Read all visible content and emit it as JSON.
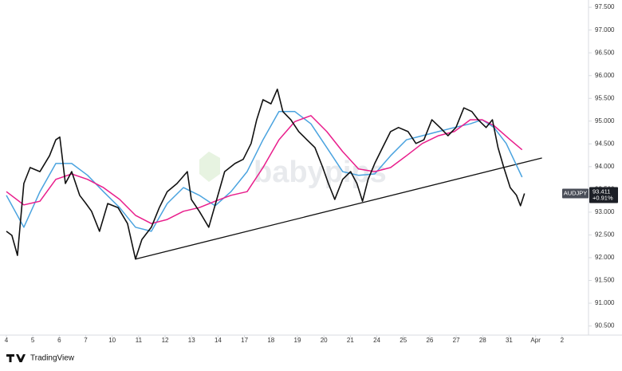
{
  "chart_data": {
    "type": "line",
    "symbol": "AUDJPY",
    "last_price": 93.411,
    "change_label": "+0.91%",
    "watermark": "babypips",
    "brand": "TradingView",
    "xlim": [
      -0.24,
      22
    ],
    "ylim": [
      90.3,
      97.66
    ],
    "xticks": [
      {
        "value": 0,
        "label": "4"
      },
      {
        "value": 1,
        "label": "5"
      },
      {
        "value": 2,
        "label": "6"
      },
      {
        "value": 3,
        "label": "7"
      },
      {
        "value": 4,
        "label": "10"
      },
      {
        "value": 5,
        "label": "11"
      },
      {
        "value": 6,
        "label": "12"
      },
      {
        "value": 7,
        "label": "13"
      },
      {
        "value": 8,
        "label": "14"
      },
      {
        "value": 9,
        "label": "17"
      },
      {
        "value": 10,
        "label": "18"
      },
      {
        "value": 11,
        "label": "19"
      },
      {
        "value": 12,
        "label": "20"
      },
      {
        "value": 13,
        "label": "21"
      },
      {
        "value": 14,
        "label": "24"
      },
      {
        "value": 15,
        "label": "25"
      },
      {
        "value": 16,
        "label": "26"
      },
      {
        "value": 17,
        "label": "27"
      },
      {
        "value": 18,
        "label": "28"
      },
      {
        "value": 19,
        "label": "31"
      },
      {
        "value": 20,
        "label": "Apr"
      },
      {
        "value": 21,
        "label": "2"
      }
    ],
    "yticks": [
      {
        "value": 90.5,
        "label": "90.500"
      },
      {
        "value": 91,
        "label": "91.000"
      },
      {
        "value": 91.5,
        "label": "91.500"
      },
      {
        "value": 92,
        "label": "92.000"
      },
      {
        "value": 92.5,
        "label": "92.500"
      },
      {
        "value": 93,
        "label": "93.000"
      },
      {
        "value": 93.5,
        "label": "93.500"
      },
      {
        "value": 94,
        "label": "94.000"
      },
      {
        "value": 94.5,
        "label": "94.500"
      },
      {
        "value": 95,
        "label": "95.000"
      },
      {
        "value": 95.5,
        "label": "95.500"
      },
      {
        "value": 96,
        "label": "96.000"
      },
      {
        "value": 96.5,
        "label": "96.500"
      },
      {
        "value": 97,
        "label": "97.000"
      },
      {
        "value": 97.5,
        "label": "97.500"
      }
    ],
    "series": [
      {
        "color": "#4aa3df",
        "width": 1.5,
        "x": [
          0,
          0.66,
          1.27,
          1.87,
          2.47,
          3.07,
          3.67,
          4.28,
          4.88,
          5.48,
          6.08,
          6.69,
          7.29,
          7.89,
          8.49,
          9.1,
          9.7,
          10.3,
          10.9,
          11.51,
          12.11,
          12.71,
          13.31,
          13.92,
          14.52,
          15.12,
          15.72,
          16.33,
          16.93,
          17.53,
          17.98,
          18.43,
          18.89,
          19.49
        ],
        "values": [
          93.37,
          92.67,
          93.45,
          94.07,
          94.07,
          93.81,
          93.45,
          93.1,
          92.67,
          92.58,
          93.19,
          93.54,
          93.37,
          93.14,
          93.45,
          93.89,
          94.59,
          95.21,
          95.21,
          94.94,
          94.42,
          93.89,
          93.81,
          93.84,
          94.24,
          94.59,
          94.68,
          94.77,
          94.86,
          94.94,
          95.03,
          94.86,
          94.51,
          93.77
        ]
      },
      {
        "color": "#e91e8c",
        "width": 1.5,
        "x": [
          0,
          0.66,
          1.27,
          1.87,
          2.47,
          3.07,
          3.67,
          4.28,
          4.88,
          5.48,
          6.08,
          6.69,
          7.29,
          7.89,
          8.49,
          9.1,
          9.7,
          10.3,
          10.9,
          11.51,
          12.11,
          12.71,
          13.31,
          13.92,
          14.52,
          15.12,
          15.72,
          16.33,
          16.93,
          17.53,
          17.98,
          18.43,
          19.04,
          19.49
        ],
        "values": [
          93.45,
          93.16,
          93.24,
          93.72,
          93.84,
          93.72,
          93.54,
          93.28,
          92.93,
          92.75,
          92.84,
          93.02,
          93.1,
          93.24,
          93.37,
          93.45,
          93.98,
          94.59,
          94.99,
          95.12,
          94.77,
          94.33,
          93.95,
          93.89,
          93.98,
          94.24,
          94.51,
          94.68,
          94.77,
          95.03,
          95.03,
          94.9,
          94.59,
          94.37
        ]
      },
      {
        "color": "#111111",
        "width": 1.6,
        "x": [
          0,
          0.21,
          0.42,
          0.66,
          0.9,
          1.27,
          1.63,
          1.87,
          2.02,
          2.23,
          2.47,
          2.77,
          3.01,
          3.22,
          3.52,
          3.83,
          4.22,
          4.58,
          4.88,
          5.12,
          5.48,
          5.78,
          6.08,
          6.45,
          6.84,
          6.99,
          7.29,
          7.65,
          7.95,
          8.25,
          8.64,
          8.95,
          9.25,
          9.46,
          9.7,
          10.0,
          10.24,
          10.45,
          10.75,
          11.05,
          11.36,
          11.66,
          11.96,
          12.17,
          12.41,
          12.71,
          13.01,
          13.25,
          13.46,
          13.67,
          13.92,
          14.22,
          14.52,
          14.82,
          15.18,
          15.48,
          15.78,
          16.08,
          16.39,
          16.69,
          16.99,
          17.29,
          17.59,
          17.83,
          18.13,
          18.37,
          18.58,
          18.8,
          19.04,
          19.28,
          19.43,
          19.58
        ],
        "values": [
          92.58,
          92.49,
          92.05,
          93.63,
          93.98,
          93.89,
          94.24,
          94.59,
          94.65,
          93.63,
          93.89,
          93.37,
          93.19,
          93.02,
          92.58,
          93.19,
          93.1,
          92.75,
          91.97,
          92.4,
          92.67,
          93.1,
          93.45,
          93.63,
          93.89,
          93.28,
          93.02,
          92.67,
          93.28,
          93.89,
          94.07,
          94.16,
          94.51,
          95.03,
          95.47,
          95.38,
          95.7,
          95.21,
          95.03,
          94.77,
          94.59,
          94.42,
          93.98,
          93.63,
          93.28,
          93.72,
          93.89,
          93.63,
          93.24,
          93.72,
          94.07,
          94.42,
          94.77,
          94.86,
          94.77,
          94.51,
          94.59,
          95.03,
          94.86,
          94.68,
          94.86,
          95.29,
          95.21,
          95.03,
          94.86,
          95.03,
          94.42,
          93.98,
          93.54,
          93.37,
          93.14,
          93.41
        ]
      }
    ],
    "trendline": {
      "x": [
        4.88,
        20.24
      ],
      "values": [
        91.97,
        94.19
      ]
    }
  }
}
